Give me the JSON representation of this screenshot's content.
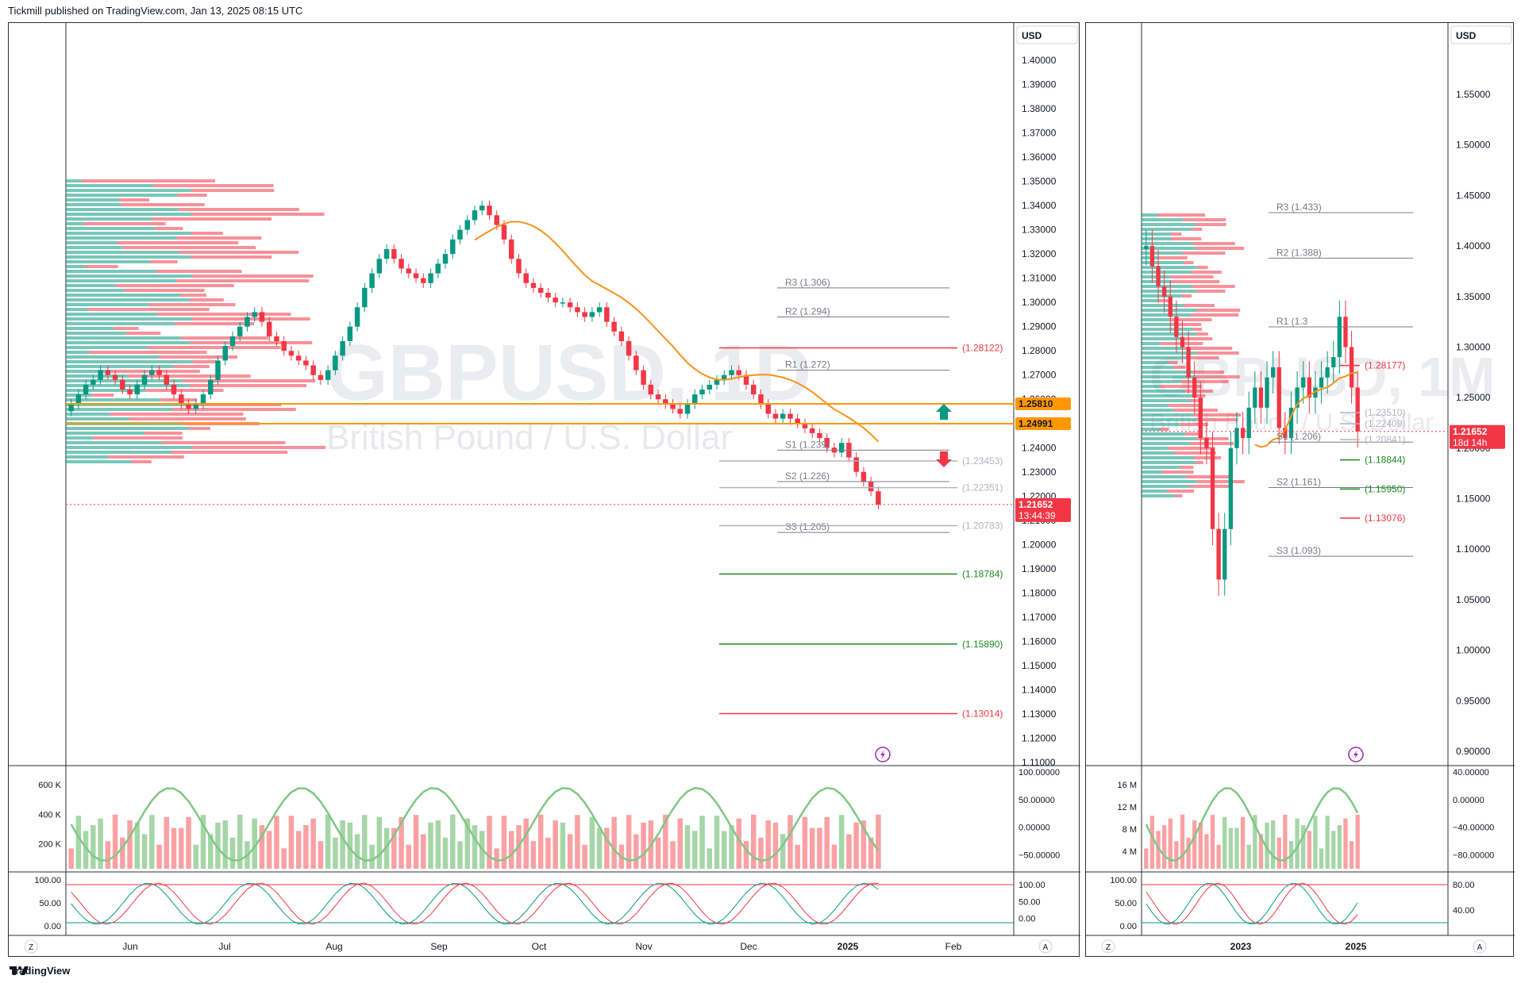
{
  "header": {
    "publisher_line": "Tickmill published on TradingView.com, Jan 13, 2025 08:15 UTC"
  },
  "footer": {
    "brand": "TradingView"
  },
  "colors": {
    "bull": "#089981",
    "bear": "#f23645",
    "ma": "#f7931a",
    "accent_orange": "#ff9800",
    "grid": "#e6e6e6"
  },
  "icons": [
    "tradingview-logo-icon",
    "lightning-icon",
    "arrow-up-icon",
    "arrow-down-icon"
  ],
  "chart_data": [
    {
      "type": "candlestick",
      "symbol_watermark": "GBPUSD, 1D",
      "description_watermark": "British Pound / U.S. Dollar",
      "currency_label": "USD",
      "ylim": [
        1.11,
        1.4
      ],
      "yticks": [
        "1.40000",
        "1.39000",
        "1.38000",
        "1.37000",
        "1.36000",
        "1.35000",
        "1.34000",
        "1.33000",
        "1.32000",
        "1.31000",
        "1.30000",
        "1.29000",
        "1.28000",
        "1.27000",
        "1.26000",
        "1.25000",
        "1.24000",
        "1.23000",
        "1.22000",
        "1.21000",
        "1.20000",
        "1.19000",
        "1.18000",
        "1.17000",
        "1.16000",
        "1.15000",
        "1.14000",
        "1.13000",
        "1.12000",
        "1.11000"
      ],
      "xticks": [
        "Jun",
        "Jul",
        "Aug",
        "Sep",
        "Oct",
        "Nov",
        "Dec",
        "2025",
        "Feb"
      ],
      "corner_labels": [
        "Z",
        "A"
      ],
      "close_series": [
        1.258,
        1.262,
        1.266,
        1.268,
        1.272,
        1.27,
        1.268,
        1.264,
        1.262,
        1.266,
        1.27,
        1.272,
        1.27,
        1.266,
        1.262,
        1.258,
        1.256,
        1.258,
        1.262,
        1.268,
        1.276,
        1.282,
        1.286,
        1.29,
        1.294,
        1.296,
        1.292,
        1.286,
        1.284,
        1.28,
        1.278,
        1.276,
        1.274,
        1.27,
        1.268,
        1.272,
        1.278,
        1.284,
        1.29,
        1.298,
        1.306,
        1.312,
        1.318,
        1.322,
        1.318,
        1.314,
        1.312,
        1.31,
        1.308,
        1.312,
        1.316,
        1.32,
        1.326,
        1.33,
        1.334,
        1.338,
        1.34,
        1.336,
        1.332,
        1.326,
        1.318,
        1.312,
        1.308,
        1.306,
        1.304,
        1.302,
        1.3,
        1.3,
        1.298,
        1.296,
        1.294,
        1.296,
        1.298,
        1.292,
        1.288,
        1.284,
        1.278,
        1.272,
        1.266,
        1.262,
        1.26,
        1.258,
        1.256,
        1.254,
        1.258,
        1.262,
        1.264,
        1.266,
        1.268,
        1.27,
        1.272,
        1.27,
        1.266,
        1.262,
        1.258,
        1.254,
        1.252,
        1.254,
        1.252,
        1.25,
        1.248,
        1.246,
        1.244,
        1.24,
        1.238,
        1.242,
        1.236,
        1.23,
        1.226,
        1.222,
        1.2165
      ],
      "levels": [
        {
          "label": "R3 (1.306)",
          "value": 1.306,
          "color": "#787b86"
        },
        {
          "label": "R2 (1.294)",
          "value": 1.294,
          "color": "#787b86"
        },
        {
          "label": "R1 (1.272)",
          "value": 1.272,
          "color": "#787b86"
        },
        {
          "label": "S1 (1.239)",
          "value": 1.239,
          "color": "#787b86"
        },
        {
          "label": "S2 (1.226)",
          "value": 1.226,
          "color": "#787b86"
        },
        {
          "label": "S3 (1.205)",
          "value": 1.205,
          "color": "#787b86"
        },
        {
          "label": "(1.28122)",
          "value": 1.28122,
          "color": "#f23645"
        },
        {
          "label": "(1.23453)",
          "value": 1.23453,
          "color": "#b2b5be"
        },
        {
          "label": "(1.22351)",
          "value": 1.22351,
          "color": "#b2b5be"
        },
        {
          "label": "(1.20783)",
          "value": 1.20783,
          "color": "#b2b5be"
        },
        {
          "label": "(1.18784)",
          "value": 1.18784,
          "color": "#1b8a22"
        },
        {
          "label": "(1.15890)",
          "value": 1.1589,
          "color": "#1b8a22"
        },
        {
          "label": "(1.13014)",
          "value": 1.13014,
          "color": "#f23645"
        }
      ],
      "price_badges": [
        {
          "text": "1.25810",
          "value": 1.2581,
          "color": "#ff9800"
        },
        {
          "text": "1.24991",
          "value": 1.24991,
          "color": "#ff9800"
        },
        {
          "text": "1.21652",
          "value": 1.21652,
          "color": "#f23645"
        }
      ],
      "countdown": "13:44:39",
      "volume_panel": {
        "yticks": [
          "600 K",
          "400 K",
          "200 K"
        ]
      },
      "osc1_panel": {
        "yticks": [
          "100.00000",
          "50.00000",
          "0.00000",
          "−50.00000"
        ]
      },
      "osc2_panel": {
        "yticks_left": [
          "100.00",
          "50.00",
          "0.00"
        ],
        "yticks_right": [
          "100.00",
          "50.00",
          "0.00"
        ]
      }
    },
    {
      "type": "candlestick",
      "symbol_watermark": "GBPUSD, 1M",
      "description_watermark": "British Pound / U.S. Dollar",
      "currency_label": "USD",
      "ylim": [
        0.9,
        1.55
      ],
      "yticks": [
        "1.55000",
        "1.50000",
        "1.45000",
        "1.40000",
        "1.35000",
        "1.30000",
        "1.25000",
        "1.20000",
        "1.15000",
        "1.10000",
        "1.05000",
        "1.00000",
        "0.95000",
        "0.90000"
      ],
      "xticks": [
        "2023",
        "2025"
      ],
      "corner_labels": [
        "Z",
        "A"
      ],
      "close_series": [
        1.4,
        1.38,
        1.36,
        1.35,
        1.33,
        1.31,
        1.3,
        1.27,
        1.25,
        1.21,
        1.2,
        1.12,
        1.07,
        1.12,
        1.2,
        1.22,
        1.21,
        1.24,
        1.26,
        1.24,
        1.27,
        1.28,
        1.22,
        1.21,
        1.24,
        1.26,
        1.27,
        1.25,
        1.26,
        1.27,
        1.28,
        1.29,
        1.33,
        1.3,
        1.26,
        1.2165
      ],
      "levels": [
        {
          "label": "R3 (1.433)",
          "value": 1.433,
          "color": "#787b86"
        },
        {
          "label": "R2 (1.388)",
          "value": 1.388,
          "color": "#787b86"
        },
        {
          "label": "R1 (1.3",
          "value": 1.32,
          "color": "#787b86"
        },
        {
          "label": "S1 (1.206)",
          "value": 1.206,
          "color": "#787b86"
        },
        {
          "label": "S2 (1.161)",
          "value": 1.161,
          "color": "#787b86"
        },
        {
          "label": "S3 (1.093)",
          "value": 1.093,
          "color": "#787b86"
        },
        {
          "label": "(1.28177)",
          "value": 1.28177,
          "color": "#f23645"
        },
        {
          "label": "(1.23510)",
          "value": 1.2351,
          "color": "#b2b5be"
        },
        {
          "label": "(1.22409)",
          "value": 1.22409,
          "color": "#b2b5be"
        },
        {
          "label": "(1.20841)",
          "value": 1.20841,
          "color": "#b2b5be"
        },
        {
          "label": "(1.18844)",
          "value": 1.18844,
          "color": "#1b8a22"
        },
        {
          "label": "(1.15950)",
          "value": 1.1595,
          "color": "#1b8a22"
        },
        {
          "label": "(1.13076)",
          "value": 1.13076,
          "color": "#f23645"
        }
      ],
      "price_badges": [
        {
          "text": "1.21652",
          "value": 1.21652,
          "color": "#f23645"
        }
      ],
      "countdown": "18d 14h",
      "volume_panel": {
        "yticks": [
          "16 M",
          "12 M",
          "8 M",
          "4 M"
        ]
      },
      "osc1_panel": {
        "yticks": [
          "40.00000",
          "0.00000",
          "−40.00000",
          "−80.00000"
        ]
      },
      "osc2_panel": {
        "yticks_left": [
          "100.00",
          "50.00",
          "0.00"
        ],
        "yticks_right": [
          "80.00",
          "40.00"
        ]
      }
    }
  ]
}
